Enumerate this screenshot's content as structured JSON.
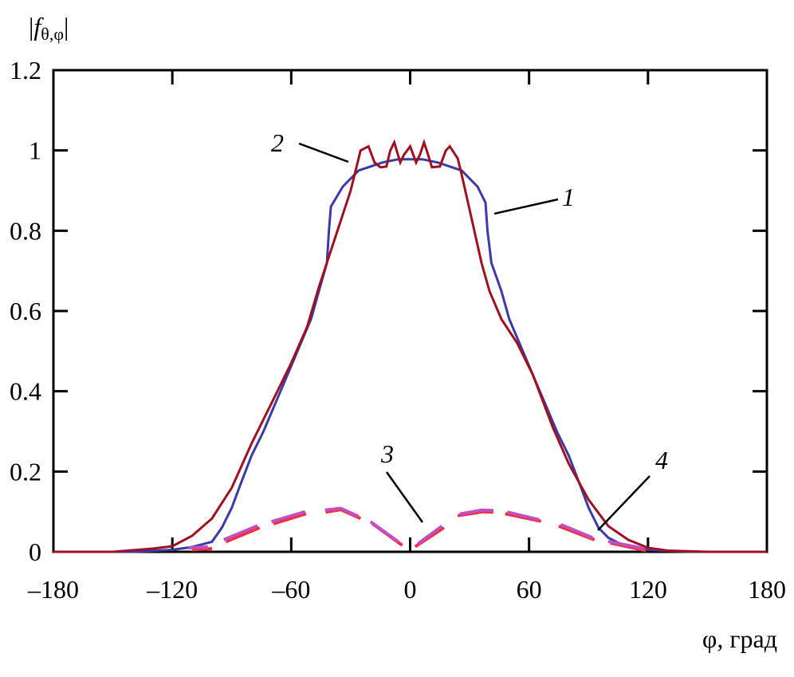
{
  "chart_data": {
    "type": "line",
    "title": "",
    "ylabel": "|fθ,φ|",
    "ylabel_main": "f",
    "ylabel_sub": "θ,φ",
    "xlabel": "φ, град",
    "xlim": [
      -180,
      180
    ],
    "ylim": [
      0,
      1.2
    ],
    "xticks": [
      -180,
      -120,
      -60,
      0,
      60,
      120,
      180
    ],
    "xtick_labels": [
      "–180",
      "–120",
      "–60",
      "0",
      "60",
      "120",
      "180"
    ],
    "yticks": [
      0,
      0.2,
      0.4,
      0.6,
      0.8,
      1,
      1.2
    ],
    "ytick_labels": [
      "0",
      "0.2",
      "0.4",
      "0.6",
      "0.8",
      "1",
      "1.2"
    ],
    "grid": false,
    "series": [
      {
        "label": "1",
        "color": "#3a3aa8",
        "points": [
          [
            -180,
            0
          ],
          [
            -140,
            0
          ],
          [
            -120,
            0.005
          ],
          [
            -110,
            0.012
          ],
          [
            -100,
            0.025
          ],
          [
            -95,
            0.06
          ],
          [
            -90,
            0.11
          ],
          [
            -86,
            0.163
          ],
          [
            -80,
            0.24
          ],
          [
            -74,
            0.3
          ],
          [
            -68,
            0.37
          ],
          [
            -62,
            0.44
          ],
          [
            -56,
            0.51
          ],
          [
            -50,
            0.58
          ],
          [
            -46,
            0.65
          ],
          [
            -42,
            0.72
          ],
          [
            -41,
            0.8
          ],
          [
            -40,
            0.86
          ],
          [
            -34,
            0.91
          ],
          [
            -26,
            0.95
          ],
          [
            -14,
            0.97
          ],
          [
            -6,
            0.978
          ],
          [
            6,
            0.978
          ],
          [
            14,
            0.97
          ],
          [
            26,
            0.95
          ],
          [
            34,
            0.91
          ],
          [
            38,
            0.87
          ],
          [
            39,
            0.8
          ],
          [
            41,
            0.72
          ],
          [
            46,
            0.65
          ],
          [
            50,
            0.58
          ],
          [
            56,
            0.51
          ],
          [
            62,
            0.44
          ],
          [
            68,
            0.37
          ],
          [
            74,
            0.3
          ],
          [
            80,
            0.24
          ],
          [
            86,
            0.163
          ],
          [
            90,
            0.11
          ],
          [
            95,
            0.06
          ],
          [
            100,
            0.035
          ],
          [
            108,
            0.015
          ],
          [
            120,
            0.005
          ],
          [
            140,
            0
          ],
          [
            180,
            0
          ]
        ]
      },
      {
        "label": "2",
        "color": "#a01020",
        "points": [
          [
            -180,
            0
          ],
          [
            -150,
            0
          ],
          [
            -130,
            0.008
          ],
          [
            -120,
            0.014
          ],
          [
            -110,
            0.04
          ],
          [
            -100,
            0.083
          ],
          [
            -90,
            0.16
          ],
          [
            -80,
            0.27
          ],
          [
            -70,
            0.37
          ],
          [
            -60,
            0.47
          ],
          [
            -52,
            0.56
          ],
          [
            -46,
            0.66
          ],
          [
            -38,
            0.78
          ],
          [
            -30,
            0.9
          ],
          [
            -25,
            1.0
          ],
          [
            -21,
            1.01
          ],
          [
            -18,
            0.97
          ],
          [
            -15,
            0.958
          ],
          [
            -12,
            0.96
          ],
          [
            -10,
            1.0
          ],
          [
            -8,
            1.02
          ],
          [
            -5,
            0.97
          ],
          [
            -3,
            0.99
          ],
          [
            0,
            1.01
          ],
          [
            3,
            0.97
          ],
          [
            5,
            0.99
          ],
          [
            7,
            1.02
          ],
          [
            9,
            0.99
          ],
          [
            11,
            0.958
          ],
          [
            15,
            0.96
          ],
          [
            18,
            1.0
          ],
          [
            20,
            1.01
          ],
          [
            24,
            0.98
          ],
          [
            26,
            0.94
          ],
          [
            31,
            0.83
          ],
          [
            36,
            0.72
          ],
          [
            40,
            0.65
          ],
          [
            46,
            0.58
          ],
          [
            54,
            0.52
          ],
          [
            62,
            0.44
          ],
          [
            72,
            0.31
          ],
          [
            80,
            0.22
          ],
          [
            90,
            0.13
          ],
          [
            100,
            0.064
          ],
          [
            110,
            0.03
          ],
          [
            120,
            0.01
          ],
          [
            130,
            0.003
          ],
          [
            150,
            0
          ],
          [
            180,
            0
          ]
        ]
      },
      {
        "label": "3",
        "color": "#ff2a3a",
        "segments": [
          [
            [
              -110,
              0.005
            ],
            [
              -100,
              0.008
            ]
          ],
          [
            [
              -93,
              0.025
            ],
            [
              -76,
              0.06
            ]
          ],
          [
            [
              -69,
              0.07
            ],
            [
              -52.5,
              0.095
            ]
          ],
          [
            [
              -42.6,
              0.099
            ],
            [
              -35,
              0.105
            ],
            [
              -25,
              0.083
            ]
          ],
          [
            [
              -19,
              0.07
            ],
            [
              -4,
              0.016
            ]
          ],
          [
            [
              2.5,
              0.013
            ],
            [
              17,
              0.06
            ]
          ],
          [
            [
              24,
              0.09
            ],
            [
              37,
              0.1
            ],
            [
              42,
              0.099
            ]
          ],
          [
            [
              48,
              0.095
            ],
            [
              66,
              0.076
            ]
          ],
          [
            [
              75,
              0.064
            ],
            [
              93,
              0.03
            ]
          ],
          [
            [
              101,
              0.022
            ],
            [
              119,
              0.003
            ]
          ]
        ]
      },
      {
        "label": "4",
        "color": "#c050c0",
        "segments": [
          [
            [
              -112,
              0.01
            ],
            [
              -102,
              0.012
            ]
          ],
          [
            [
              -94,
              0.03
            ],
            [
              -77,
              0.065
            ]
          ],
          [
            [
              -70,
              0.075
            ],
            [
              -53,
              0.1
            ]
          ],
          [
            [
              -43,
              0.104
            ],
            [
              -35,
              0.108
            ],
            [
              -26,
              0.088
            ]
          ],
          [
            [
              -20,
              0.075
            ],
            [
              -6,
              0.025
            ]
          ],
          [
            [
              4,
              0.02
            ],
            [
              16,
              0.064
            ]
          ],
          [
            [
              25,
              0.094
            ],
            [
              36,
              0.104
            ],
            [
              42,
              0.103
            ]
          ],
          [
            [
              49,
              0.099
            ],
            [
              65,
              0.08
            ]
          ],
          [
            [
              76,
              0.068
            ],
            [
              92,
              0.035
            ]
          ],
          [
            [
              100,
              0.026
            ],
            [
              118,
              0.008
            ]
          ]
        ]
      }
    ]
  }
}
